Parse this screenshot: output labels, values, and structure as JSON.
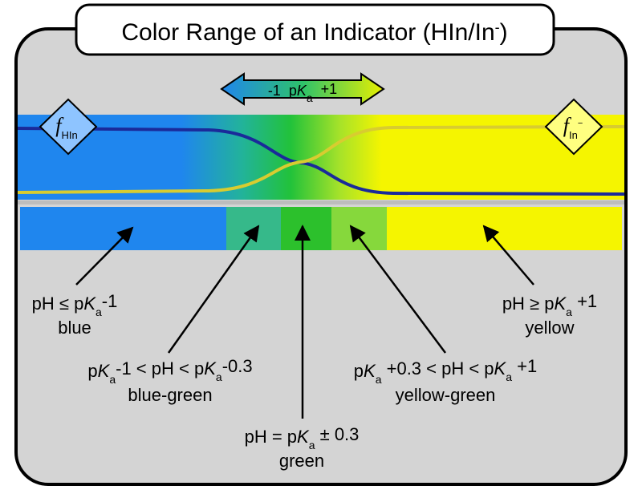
{
  "title": [
    "Color Range of an Indicator (HIn/In",
    "-",
    ")"
  ],
  "arrow_label": [
    "-1  p",
    "K",
    "a",
    "  +1"
  ],
  "f_hin": [
    "f",
    "HIn"
  ],
  "f_in": [
    "f",
    "In",
    "−"
  ],
  "labels": [
    {
      "line1": [
        "pH ≤ p",
        "K",
        "a",
        "-1"
      ],
      "line2": "blue"
    },
    {
      "line1": [
        "p",
        "K",
        "a",
        "-1 < pH < p",
        "K",
        "a",
        "-0.3"
      ],
      "line2": "blue-green"
    },
    {
      "line1": [
        "pH = p",
        "K",
        "a",
        " ± 0.3"
      ],
      "line2": "green"
    },
    {
      "line1": [
        "p",
        "K",
        "a",
        " +0.3 < pH < p",
        "K",
        "a",
        " +1"
      ],
      "line2": "yellow-green"
    },
    {
      "line1": [
        "pH ≥ p",
        "K",
        "a",
        " +1"
      ],
      "line2": "yellow"
    }
  ]
}
